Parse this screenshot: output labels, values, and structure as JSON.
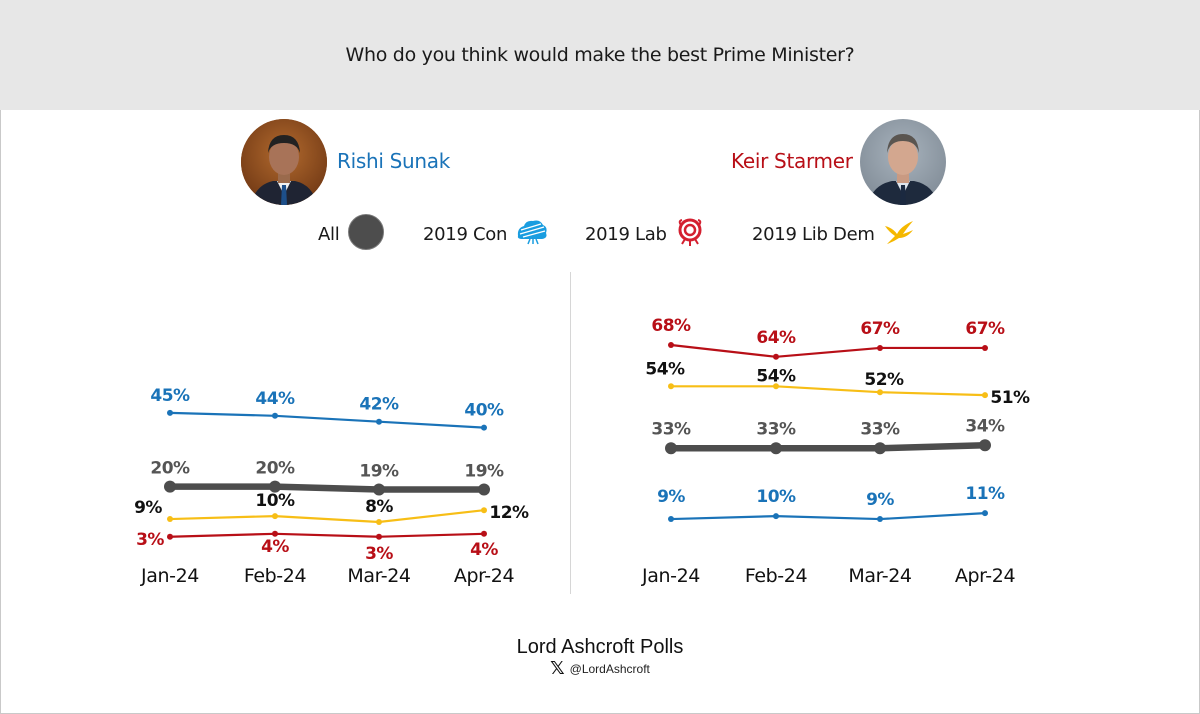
{
  "header": {
    "title": "Who do you think would make the best Prime Minister?"
  },
  "people": [
    {
      "name": "Rishi Sunak",
      "color": "#1a73b8"
    },
    {
      "name": "Keir Starmer",
      "color": "#b80f17"
    }
  ],
  "legend": [
    {
      "label": "All",
      "icon": "grey-circle-icon",
      "color": "#4d4d4d"
    },
    {
      "label": "2019 Con",
      "icon": "conservative-tree-icon",
      "color": "#1a9de0"
    },
    {
      "label": "2019 Lab",
      "icon": "labour-rose-icon",
      "color": "#d42030"
    },
    {
      "label": "2019 Lib Dem",
      "icon": "libdem-bird-icon",
      "color": "#f5b800"
    }
  ],
  "colors": {
    "all": "#4d4d4d",
    "con": "#1a73b8",
    "lab": "#b80f17",
    "libdem": "#f7be16",
    "libdem_label": "#111111"
  },
  "chart_data": [
    {
      "type": "line",
      "title": "Rishi Sunak",
      "categories": [
        "Jan-24",
        "Feb-24",
        "Mar-24",
        "Apr-24"
      ],
      "xlabel": "",
      "ylabel": "",
      "grid": false,
      "series": [
        {
          "name": "2019 Con",
          "key": "con",
          "values": [
            45,
            44,
            42,
            40
          ],
          "labels": [
            "45%",
            "44%",
            "42%",
            "40%"
          ]
        },
        {
          "name": "All",
          "key": "all",
          "values": [
            20,
            20,
            19,
            19
          ],
          "labels": [
            "20%",
            "20%",
            "19%",
            "19%"
          ]
        },
        {
          "name": "2019 Lib Dem",
          "key": "libdem",
          "values": [
            9,
            10,
            8,
            12
          ],
          "labels": [
            "9%",
            "10%",
            "8%",
            "12%"
          ]
        },
        {
          "name": "2019 Lab",
          "key": "lab",
          "values": [
            3,
            4,
            3,
            4
          ],
          "labels": [
            "3%",
            "4%",
            "3%",
            "4%"
          ]
        }
      ]
    },
    {
      "type": "line",
      "title": "Keir Starmer",
      "categories": [
        "Jan-24",
        "Feb-24",
        "Mar-24",
        "Apr-24"
      ],
      "xlabel": "",
      "ylabel": "",
      "grid": false,
      "series": [
        {
          "name": "2019 Lab",
          "key": "lab",
          "values": [
            68,
            64,
            67,
            67
          ],
          "labels": [
            "68%",
            "64%",
            "67%",
            "67%"
          ]
        },
        {
          "name": "2019 Lib Dem",
          "key": "libdem",
          "values": [
            54,
            54,
            52,
            51
          ],
          "labels": [
            "54%",
            "54%",
            "52%",
            "51%"
          ]
        },
        {
          "name": "All",
          "key": "all",
          "values": [
            33,
            33,
            33,
            34
          ],
          "labels": [
            "33%",
            "33%",
            "33%",
            "34%"
          ]
        },
        {
          "name": "2019 Con",
          "key": "con",
          "values": [
            9,
            10,
            9,
            11
          ],
          "labels": [
            "9%",
            "10%",
            "9%",
            "11%"
          ]
        }
      ]
    }
  ],
  "footer": {
    "title": "Lord Ashcroft Polls",
    "handle": "@LordAshcroft",
    "social_icon": "x-logo-icon"
  }
}
